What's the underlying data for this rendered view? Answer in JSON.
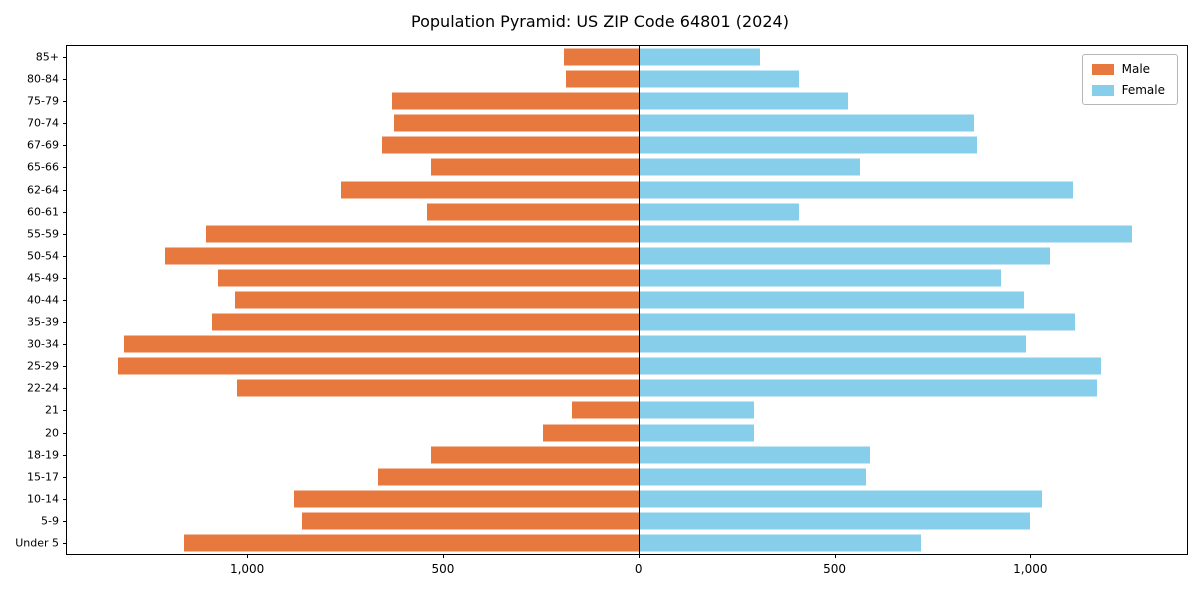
{
  "chart_data": {
    "type": "bar",
    "subtype": "population-pyramid",
    "title": "Population Pyramid: US ZIP Code 64801 (2024)",
    "orientation": "horizontal",
    "categories_top_to_bottom": [
      "85+",
      "80-84",
      "75-79",
      "70-74",
      "67-69",
      "65-66",
      "62-64",
      "60-61",
      "55-59",
      "50-54",
      "45-49",
      "40-44",
      "35-39",
      "30-34",
      "25-29",
      "22-24",
      "21",
      "20",
      "18-19",
      "15-17",
      "10-14",
      "5-9",
      "Under 5"
    ],
    "series": [
      {
        "name": "Male",
        "side": "left",
        "color": "#e8793e",
        "values": [
          190,
          185,
          630,
          625,
          655,
          530,
          760,
          540,
          1105,
          1210,
          1075,
          1030,
          1090,
          1315,
          1330,
          1025,
          170,
          245,
          530,
          665,
          880,
          860,
          1160
        ]
      },
      {
        "name": "Female",
        "side": "right",
        "color": "#87ceeb",
        "values": [
          310,
          410,
          535,
          855,
          865,
          565,
          1110,
          410,
          1260,
          1050,
          925,
          985,
          1115,
          990,
          1180,
          1170,
          295,
          295,
          590,
          580,
          1030,
          1000,
          720
        ]
      }
    ],
    "x_axis": {
      "left_extent": 1460,
      "right_extent": 1400,
      "ticks": [
        {
          "value": -1000,
          "label": "1,000"
        },
        {
          "value": -500,
          "label": "500"
        },
        {
          "value": 0,
          "label": "0"
        },
        {
          "value": 500,
          "label": "500"
        },
        {
          "value": 1000,
          "label": "1,000"
        }
      ]
    },
    "grid": false,
    "legend": {
      "position": "upper-right",
      "entries": [
        {
          "label": "Male",
          "color": "#e8793e"
        },
        {
          "label": "Female",
          "color": "#87ceeb"
        }
      ]
    },
    "zero_line_color": "#000000",
    "background_color": "#ffffff"
  }
}
